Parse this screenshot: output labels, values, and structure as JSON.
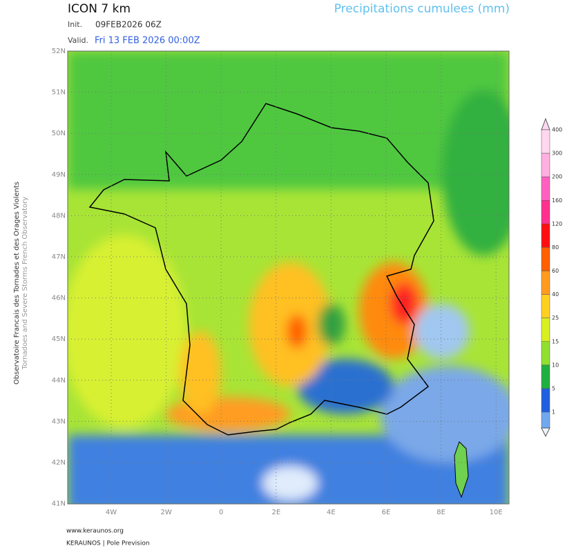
{
  "header": {
    "model": "ICON 7 km",
    "product": "Precipitations cumulees (mm)",
    "init_label": "Init.",
    "init": "09FEB2026 06Z",
    "valid_label": "Valid.",
    "valid": "Fri 13 FEB 2026 00:00Z"
  },
  "side": {
    "line1": "Observatoire Francais des Tornades et des Orages Violents",
    "line2": "Tornadoes and Severe Storms French Observatory"
  },
  "map": {
    "lat_labels": [
      "52N",
      "51N",
      "50N",
      "49N",
      "48N",
      "47N",
      "46N",
      "45N",
      "44N",
      "43N",
      "42N",
      "41N"
    ],
    "lon_labels": [
      "4W",
      "2W",
      "0",
      "2E",
      "4E",
      "6E",
      "8E",
      "10E"
    ]
  },
  "colorbar": [
    {
      "label": "400",
      "color": "#ffd8f0"
    },
    {
      "label": "300",
      "color": "#ffb0e0"
    },
    {
      "label": "200",
      "color": "#ff60c0"
    },
    {
      "label": "160",
      "color": "#ff3090"
    },
    {
      "label": "120",
      "color": "#ff1010"
    },
    {
      "label": "80",
      "color": "#ff6000"
    },
    {
      "label": "60",
      "color": "#ff9c20"
    },
    {
      "label": "40",
      "color": "#ffd020"
    },
    {
      "label": "25",
      "color": "#d8f020"
    },
    {
      "label": "15",
      "color": "#90e030"
    },
    {
      "label": "10",
      "color": "#20b040"
    },
    {
      "label": "5",
      "color": "#2060e0"
    },
    {
      "label": "1",
      "color": "#70a8f0"
    }
  ],
  "footer": {
    "site": "www.keraunos.org",
    "org": "KERAUNOS | Pole Prevision"
  }
}
